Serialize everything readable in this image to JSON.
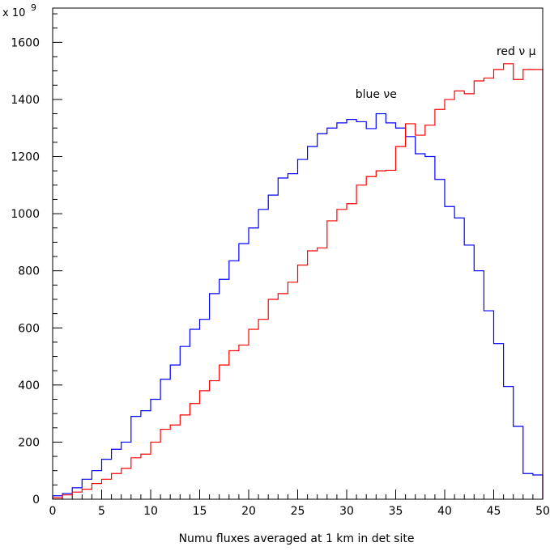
{
  "chart_data": {
    "type": "histogram",
    "xlabel": "Numu fluxes averaged at 1 km in det site",
    "exponent_label": "x 10",
    "exponent_power": "9",
    "xlim": [
      0,
      50
    ],
    "ylim": [
      0,
      1720
    ],
    "x_major_ticks": [
      0,
      5,
      10,
      15,
      20,
      25,
      30,
      35,
      40,
      45,
      50
    ],
    "y_major_ticks": [
      0,
      200,
      400,
      600,
      800,
      1000,
      1200,
      1400,
      1600
    ],
    "x_tick_labels": [
      "0",
      "5",
      "10",
      "15",
      "20",
      "25",
      "30",
      "35",
      "40",
      "45",
      "50"
    ],
    "y_tick_labels": [
      "0",
      "200",
      "400",
      "600",
      "800",
      "1000",
      "1200",
      "1400",
      "1600"
    ],
    "bin_edges": [
      0,
      1,
      2,
      3,
      4,
      5,
      6,
      7,
      8,
      9,
      10,
      11,
      12,
      13,
      14,
      15,
      16,
      17,
      18,
      19,
      20,
      21,
      22,
      23,
      24,
      25,
      26,
      27,
      28,
      29,
      30,
      31,
      32,
      33,
      34,
      35,
      36,
      37,
      38,
      39,
      40,
      41,
      42,
      43,
      44,
      45,
      46,
      47,
      48,
      49,
      50
    ],
    "annotations": [
      {
        "text": "blue νe",
        "x": 33,
        "y": 1405
      },
      {
        "text": "red ν μ",
        "x": 49.3,
        "y": 1555
      }
    ],
    "series": [
      {
        "color": "#0000ff",
        "values": [
          12,
          20,
          40,
          70,
          100,
          140,
          175,
          200,
          290,
          310,
          350,
          420,
          470,
          535,
          595,
          630,
          720,
          770,
          835,
          895,
          950,
          1015,
          1065,
          1125,
          1140,
          1190,
          1235,
          1280,
          1300,
          1318,
          1330,
          1322,
          1298,
          1350,
          1318,
          1300,
          1270,
          1210,
          1200,
          1120,
          1025,
          985,
          890,
          800,
          660,
          545,
          395,
          255,
          90,
          85
        ]
      },
      {
        "color": "#ff0000",
        "values": [
          5,
          15,
          25,
          35,
          55,
          70,
          90,
          108,
          145,
          158,
          200,
          245,
          260,
          295,
          335,
          380,
          415,
          470,
          520,
          540,
          595,
          630,
          700,
          720,
          760,
          820,
          870,
          880,
          975,
          1015,
          1035,
          1100,
          1130,
          1150,
          1152,
          1235,
          1315,
          1275,
          1310,
          1365,
          1400,
          1430,
          1420,
          1465,
          1475,
          1505,
          1525,
          1470,
          1505,
          1505
        ]
      }
    ]
  }
}
